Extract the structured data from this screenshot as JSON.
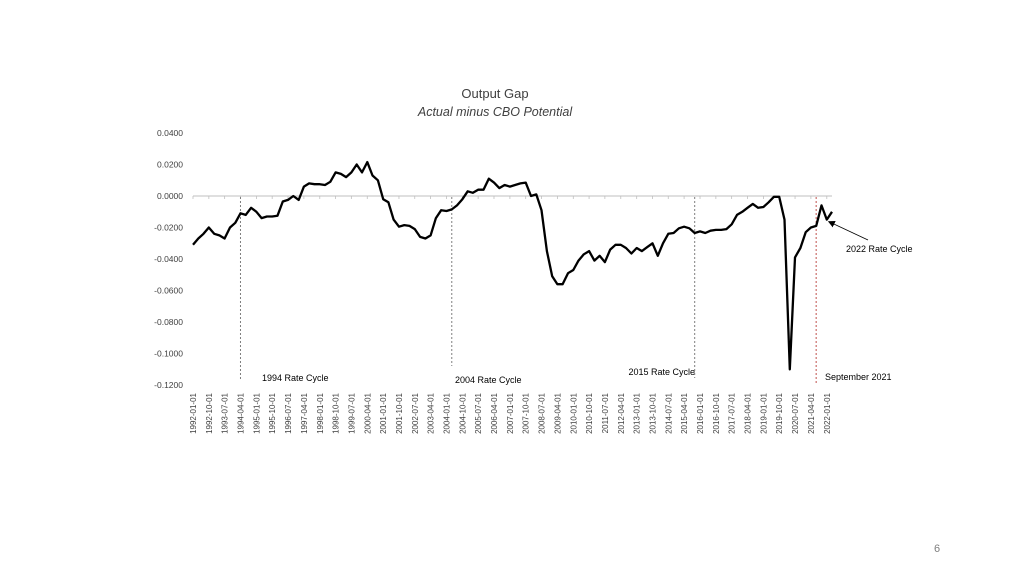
{
  "page_number": "6",
  "chart_data": {
    "type": "line",
    "title": "Output Gap",
    "subtitle": "Actual minus CBO Potential",
    "xlabel": "",
    "ylabel": "",
    "ylim": [
      -0.12,
      0.04
    ],
    "y_ticks": [
      "0.0400",
      "0.0200",
      "0.0000",
      "-0.0200",
      "-0.0400",
      "-0.0600",
      "-0.0800",
      "-0.1000",
      "-0.1200"
    ],
    "y_tick_values": [
      0.04,
      0.02,
      0.0,
      -0.02,
      -0.04,
      -0.06,
      -0.08,
      -0.1,
      -0.12
    ],
    "x_ticks": [
      "1992-01-01",
      "1992-10-01",
      "1993-07-01",
      "1994-04-01",
      "1995-01-01",
      "1995-10-01",
      "1996-07-01",
      "1997-04-01",
      "1998-01-01",
      "1998-10-01",
      "1999-07-01",
      "2000-04-01",
      "2001-01-01",
      "2001-10-01",
      "2002-07-01",
      "2003-04-01",
      "2004-01-01",
      "2004-10-01",
      "2005-07-01",
      "2006-04-01",
      "2007-01-01",
      "2007-10-01",
      "2008-07-01",
      "2009-04-01",
      "2010-01-01",
      "2010-10-01",
      "2011-07-01",
      "2012-04-01",
      "2013-01-01",
      "2013-10-01",
      "2014-07-01",
      "2015-04-01",
      "2016-01-01",
      "2016-10-01",
      "2017-07-01",
      "2018-04-01",
      "2019-01-01",
      "2019-10-01",
      "2020-07-01",
      "2021-04-01",
      "2022-01-01"
    ],
    "grid": false,
    "legend": "none",
    "line_color": "#000000",
    "series": [
      {
        "name": "",
        "x": [
          "1992-01-01",
          "1992-04-01",
          "1992-07-01",
          "1992-10-01",
          "1993-01-01",
          "1993-04-01",
          "1993-07-01",
          "1993-10-01",
          "1994-01-01",
          "1994-04-01",
          "1994-07-01",
          "1994-10-01",
          "1995-01-01",
          "1995-04-01",
          "1995-07-01",
          "1995-10-01",
          "1996-01-01",
          "1996-04-01",
          "1996-07-01",
          "1996-10-01",
          "1997-01-01",
          "1997-04-01",
          "1997-07-01",
          "1997-10-01",
          "1998-01-01",
          "1998-04-01",
          "1998-07-01",
          "1998-10-01",
          "1999-01-01",
          "1999-04-01",
          "1999-07-01",
          "1999-10-01",
          "2000-01-01",
          "2000-04-01",
          "2000-07-01",
          "2000-10-01",
          "2001-01-01",
          "2001-04-01",
          "2001-07-01",
          "2001-10-01",
          "2002-01-01",
          "2002-04-01",
          "2002-07-01",
          "2002-10-01",
          "2003-01-01",
          "2003-04-01",
          "2003-07-01",
          "2003-10-01",
          "2004-01-01",
          "2004-04-01",
          "2004-07-01",
          "2004-10-01",
          "2005-01-01",
          "2005-04-01",
          "2005-07-01",
          "2005-10-01",
          "2006-01-01",
          "2006-04-01",
          "2006-07-01",
          "2006-10-01",
          "2007-01-01",
          "2007-04-01",
          "2007-07-01",
          "2007-10-01",
          "2008-01-01",
          "2008-04-01",
          "2008-07-01",
          "2008-10-01",
          "2009-01-01",
          "2009-04-01",
          "2009-07-01",
          "2009-10-01",
          "2010-01-01",
          "2010-04-01",
          "2010-07-01",
          "2010-10-01",
          "2011-01-01",
          "2011-04-01",
          "2011-07-01",
          "2011-10-01",
          "2012-01-01",
          "2012-04-01",
          "2012-07-01",
          "2012-10-01",
          "2013-01-01",
          "2013-04-01",
          "2013-07-01",
          "2013-10-01",
          "2014-01-01",
          "2014-04-01",
          "2014-07-01",
          "2014-10-01",
          "2015-01-01",
          "2015-04-01",
          "2015-07-01",
          "2015-10-01",
          "2016-01-01",
          "2016-04-01",
          "2016-07-01",
          "2016-10-01",
          "2017-01-01",
          "2017-04-01",
          "2017-07-01",
          "2017-10-01",
          "2018-01-01",
          "2018-04-01",
          "2018-07-01",
          "2018-10-01",
          "2019-01-01",
          "2019-04-01",
          "2019-07-01",
          "2019-10-01",
          "2020-01-01",
          "2020-04-01",
          "2020-07-01",
          "2020-10-01",
          "2021-01-01",
          "2021-04-01",
          "2021-07-01",
          "2021-10-01",
          "2022-01-01",
          "2022-04-01"
        ],
        "values": [
          -0.031,
          -0.027,
          -0.024,
          -0.02,
          -0.024,
          -0.025,
          -0.027,
          -0.02,
          -0.017,
          -0.011,
          -0.012,
          -0.0075,
          -0.01,
          -0.014,
          -0.013,
          -0.013,
          -0.0125,
          -0.0035,
          -0.0025,
          0.0,
          -0.0025,
          0.006,
          0.008,
          0.0075,
          0.0075,
          0.007,
          0.009,
          0.015,
          0.014,
          0.012,
          0.015,
          0.02,
          0.015,
          0.0215,
          0.013,
          0.01,
          -0.002,
          -0.004,
          -0.015,
          -0.0195,
          -0.0185,
          -0.019,
          -0.021,
          -0.026,
          -0.027,
          -0.025,
          -0.014,
          -0.009,
          -0.0095,
          -0.0085,
          -0.006,
          -0.002,
          0.003,
          0.002,
          0.004,
          0.004,
          0.011,
          0.0085,
          0.005,
          0.007,
          0.006,
          0.007,
          0.008,
          0.0085,
          0.0,
          0.001,
          -0.009,
          -0.035,
          -0.051,
          -0.056,
          -0.056,
          -0.049,
          -0.047,
          -0.041,
          -0.037,
          -0.035,
          -0.041,
          -0.038,
          -0.042,
          -0.034,
          -0.031,
          -0.031,
          -0.033,
          -0.0365,
          -0.033,
          -0.035,
          -0.0325,
          -0.03,
          -0.038,
          -0.03,
          -0.024,
          -0.0235,
          -0.0205,
          -0.0195,
          -0.0205,
          -0.0235,
          -0.0225,
          -0.0235,
          -0.022,
          -0.0215,
          -0.0215,
          -0.021,
          -0.018,
          -0.012,
          -0.01,
          -0.0075,
          -0.005,
          -0.0075,
          -0.007,
          -0.004,
          -0.0005,
          -0.0005,
          -0.015,
          -0.11,
          -0.039,
          -0.033,
          -0.023,
          -0.02,
          -0.019,
          -0.006,
          -0.015,
          -0.01
        ]
      }
    ],
    "vertical_markers": [
      {
        "label": "1994 Rate Cycle",
        "x": "1994-04-01",
        "color": "#7f7f7f"
      },
      {
        "label": "2004 Rate Cycle",
        "x": "2004-04-01",
        "color": "#7f7f7f"
      },
      {
        "label": "2015 Rate Cycle",
        "x": "2015-10-01",
        "color": "#7f7f7f"
      },
      {
        "label": "September 2021",
        "x": "2021-07-01",
        "color": "#c0504d"
      }
    ],
    "arrow_annotation": {
      "label": "2022 Rate Cycle",
      "x": "2022-01-01",
      "y": -0.015
    }
  }
}
